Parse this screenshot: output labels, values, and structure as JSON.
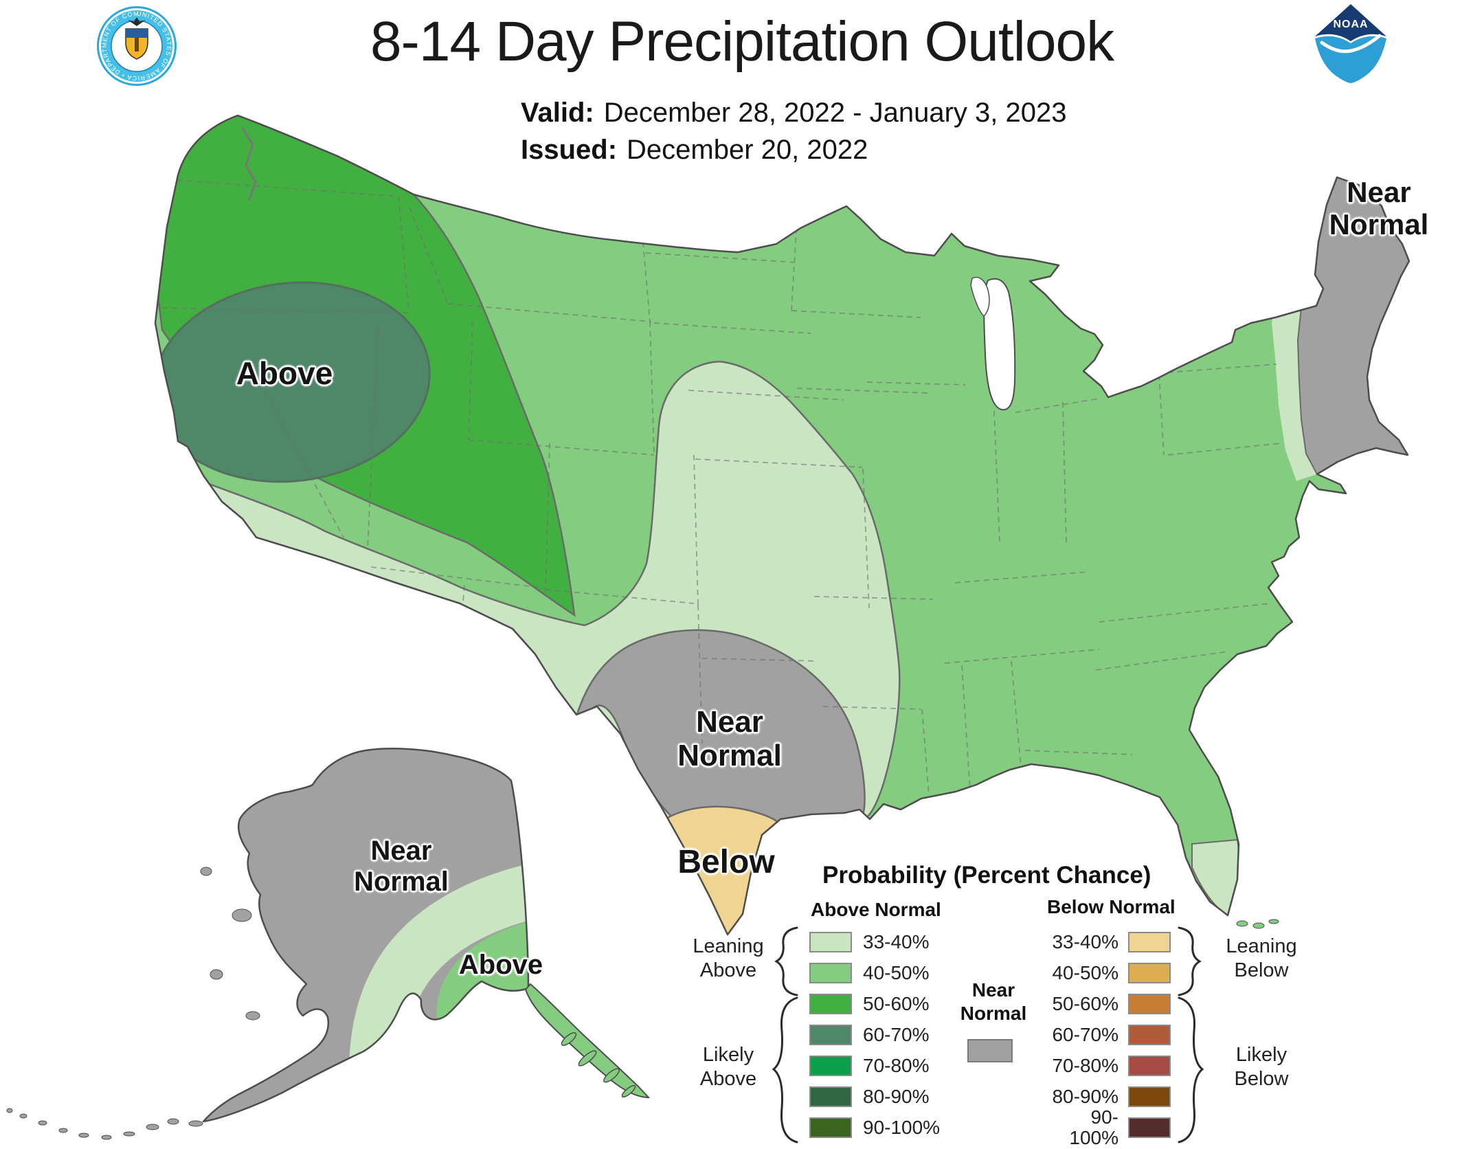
{
  "header": {
    "title": "8-14 Day Precipitation Outlook",
    "valid_label": "Valid:",
    "valid_value": "December 28, 2022 - January 3, 2023",
    "issued_label": "Issued:",
    "issued_value": "December 20, 2022",
    "noaa_logo_text": "NOAA",
    "doc_seal_text": "UNITED STATES OF AMERICA • DEPARTMENT OF COMMERCE •"
  },
  "map": {
    "labels": {
      "west_above": "Above",
      "northeast_near_normal": "Near\nNormal",
      "south_central_near_normal": "Near\nNormal",
      "south_texas_below": "Below",
      "alaska_near_normal": "Near\nNormal",
      "alaska_above": "Above"
    }
  },
  "legend": {
    "title": "Probability (Percent Chance)",
    "above_header": "Above Normal",
    "below_header": "Below Normal",
    "near_normal_label": "Near\nNormal",
    "leaning_above": "Leaning\nAbove",
    "likely_above": "Likely\nAbove",
    "leaning_below": "Leaning\nBelow",
    "likely_below": "Likely\nBelow",
    "above_rows": [
      {
        "range": "33-40%",
        "color": "#c9e5c1"
      },
      {
        "range": "40-50%",
        "color": "#84cc80"
      },
      {
        "range": "50-60%",
        "color": "#42b040"
      },
      {
        "range": "60-70%",
        "color": "#4f8769"
      },
      {
        "range": "70-80%",
        "color": "#0da04c"
      },
      {
        "range": "80-90%",
        "color": "#2f6743"
      },
      {
        "range": "90-100%",
        "color": "#3b641e"
      }
    ],
    "below_rows": [
      {
        "range": "33-40%",
        "color": "#f0d592"
      },
      {
        "range": "40-50%",
        "color": "#dcae51"
      },
      {
        "range": "50-60%",
        "color": "#c87d35"
      },
      {
        "range": "60-70%",
        "color": "#b05c3b"
      },
      {
        "range": "70-80%",
        "color": "#a64b43"
      },
      {
        "range": "80-90%",
        "color": "#7c4708"
      },
      {
        "range": "90-100%",
        "color": "#532c2c"
      }
    ]
  },
  "palette": {
    "above_33_40": "#c9e5c1",
    "above_40_50": "#84cc80",
    "above_50_60": "#42b040",
    "above_60_70": "#4f8769",
    "below_33_40": "#f0d592",
    "near_normal": "#a1a1a1",
    "map_outline": "#4d4d4d",
    "region_edge": "#6a6a6a",
    "state_border": "#6e6e6e",
    "water": "#ffffff",
    "noaa_dark_blue": "#173a72",
    "noaa_light_blue": "#2e9fd4",
    "doc_blue": "#45bfe8"
  }
}
